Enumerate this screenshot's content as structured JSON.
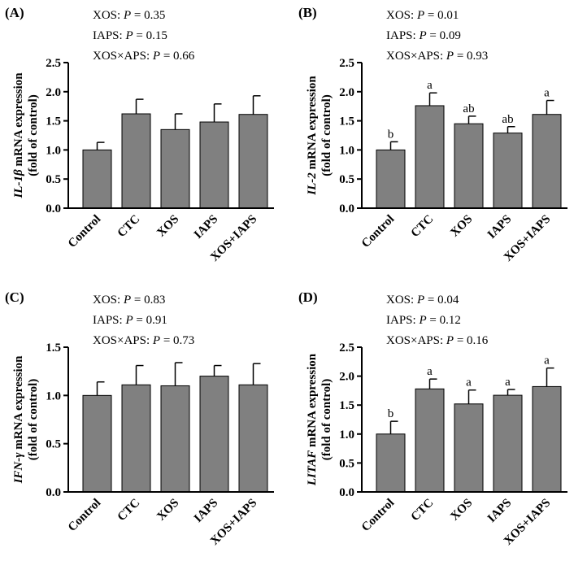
{
  "chart_data": [
    {
      "type": "bar",
      "panel_label": "(A)",
      "ylabel_gene": "IL-1β",
      "ylabel_rest": " mRNA expression",
      "ylabel_line2": "(fold of control)",
      "categories": [
        "Control",
        "CTC",
        "XOS",
        "IAPS",
        "XOS+IAPS"
      ],
      "values": [
        1.0,
        1.62,
        1.35,
        1.48,
        1.61
      ],
      "errors": [
        0.13,
        0.25,
        0.27,
        0.31,
        0.32
      ],
      "letters": [
        "",
        "",
        "",
        "",
        ""
      ],
      "ylim": [
        0,
        2.5
      ],
      "yticks": [
        "0.0",
        "0.5",
        "1.0",
        "1.5",
        "2.0",
        "2.5"
      ],
      "stats": [
        {
          "label": "XOS: ",
          "p": "P",
          "value": " = 0.35"
        },
        {
          "label": "IAPS: ",
          "p": "P",
          "value": " = 0.15"
        },
        {
          "label": "XOS×APS: ",
          "p": "P",
          "value": " = 0.66"
        }
      ]
    },
    {
      "type": "bar",
      "panel_label": "(B)",
      "ylabel_gene": "IL-2",
      "ylabel_rest": " mRNA expression",
      "ylabel_line2": "(fold of control)",
      "categories": [
        "Control",
        "CTC",
        "XOS",
        "IAPS",
        "XOS+IAPS"
      ],
      "values": [
        1.0,
        1.76,
        1.45,
        1.29,
        1.61
      ],
      "errors": [
        0.14,
        0.22,
        0.13,
        0.11,
        0.24
      ],
      "letters": [
        "b",
        "a",
        "ab",
        "ab",
        "a"
      ],
      "ylim": [
        0,
        2.5
      ],
      "yticks": [
        "0.0",
        "0.5",
        "1.0",
        "1.5",
        "2.0",
        "2.5"
      ],
      "stats": [
        {
          "label": "XOS: ",
          "p": "P",
          "value": " = 0.01"
        },
        {
          "label": "IAPS: ",
          "p": "P",
          "value": " = 0.09"
        },
        {
          "label": "XOS×APS: ",
          "p": "P",
          "value": " = 0.93"
        }
      ]
    },
    {
      "type": "bar",
      "panel_label": "(C)",
      "ylabel_gene": "IFN-γ",
      "ylabel_rest": " mRNA expression",
      "ylabel_line2": "(fold of control)",
      "categories": [
        "Control",
        "CTC",
        "XOS",
        "IAPS",
        "XOS+IAPS"
      ],
      "values": [
        1.0,
        1.11,
        1.1,
        1.2,
        1.11
      ],
      "errors": [
        0.14,
        0.2,
        0.24,
        0.11,
        0.22
      ],
      "letters": [
        "",
        "",
        "",
        "",
        ""
      ],
      "ylim": [
        0,
        1.5
      ],
      "yticks": [
        "0.0",
        "0.5",
        "1.0",
        "1.5"
      ],
      "stats": [
        {
          "label": "XOS: ",
          "p": "P",
          "value": " = 0.83"
        },
        {
          "label": "IAPS: ",
          "p": "P",
          "value": " = 0.91"
        },
        {
          "label": "XOS×APS: ",
          "p": "P",
          "value": " = 0.73"
        }
      ]
    },
    {
      "type": "bar",
      "panel_label": "(D)",
      "ylabel_gene": "LITAF",
      "ylabel_rest": " mRNA expression",
      "ylabel_line2": "(fold of control)",
      "categories": [
        "Control",
        "CTC",
        "XOS",
        "IAPS",
        "XOS+IAPS"
      ],
      "values": [
        1.0,
        1.78,
        1.52,
        1.67,
        1.82
      ],
      "errors": [
        0.22,
        0.17,
        0.24,
        0.1,
        0.32
      ],
      "letters": [
        "b",
        "a",
        "a",
        "a",
        "a"
      ],
      "ylim": [
        0,
        2.5
      ],
      "yticks": [
        "0.0",
        "0.5",
        "1.0",
        "1.5",
        "2.0",
        "2.5"
      ],
      "stats": [
        {
          "label": "XOS: ",
          "p": "P",
          "value": " = 0.04"
        },
        {
          "label": "IAPS: ",
          "p": "P",
          "value": " = 0.12"
        },
        {
          "label": "XOS×APS: ",
          "p": "P",
          "value": " = 0.16"
        }
      ]
    }
  ],
  "colors": {
    "bar": "#808080",
    "stroke": "#000000"
  }
}
